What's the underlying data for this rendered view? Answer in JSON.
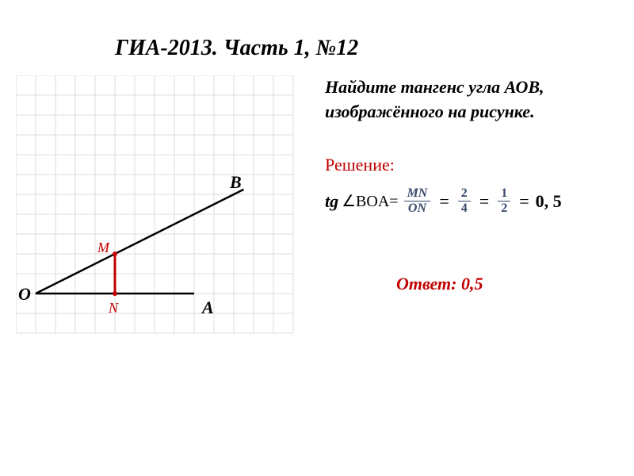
{
  "title": "ГИА-2013. Часть 1, №12",
  "problem": "Найдите тангенс угла АОВ, изображённого на рисунке.",
  "solution_label": "Решение:",
  "formula": {
    "tg": "tg",
    "angle_label": "∠BOA=",
    "frac1_num": "MN",
    "frac1_den": "ON",
    "frac2_num": "2",
    "frac2_den": "4",
    "frac3_num": "1",
    "frac3_den": "2",
    "result": "0, 5"
  },
  "answer": "Ответ:  0,5",
  "diagram": {
    "grid": {
      "cell_size": 25,
      "cols": 14,
      "rows": 13,
      "color": "#dcdcdc",
      "bg": "#ffffff"
    },
    "points": {
      "O": {
        "gx": 1,
        "gy": 11,
        "label": "O",
        "label_dx": -22,
        "label_dy": -12
      },
      "A": {
        "gx": 9,
        "gy": 11,
        "label": "A",
        "label_dx": 10,
        "label_dy": 5
      },
      "B": {
        "gx": 11,
        "gy": 6,
        "label": "B",
        "label_dx": -5,
        "label_dy": -28
      },
      "M": {
        "gx": 5,
        "gy": 9,
        "label": "M",
        "label_dx": -22,
        "label_dy": -18,
        "dot_color": "#c00000"
      },
      "N": {
        "gx": 5,
        "gy": 11,
        "label": "N",
        "label_dx": -8,
        "label_dy": 8,
        "dot_color": "#c00000"
      }
    },
    "lines": {
      "OA": {
        "color": "#000000",
        "width": 2.5
      },
      "OB": {
        "color": "#000000",
        "width": 2.5,
        "extend": 1.05
      },
      "MN": {
        "color": "#c00000",
        "width": 3
      }
    },
    "dot_radius": 3
  },
  "colors": {
    "text": "#000000",
    "accent": "#c00000",
    "frac": "#37486b"
  }
}
